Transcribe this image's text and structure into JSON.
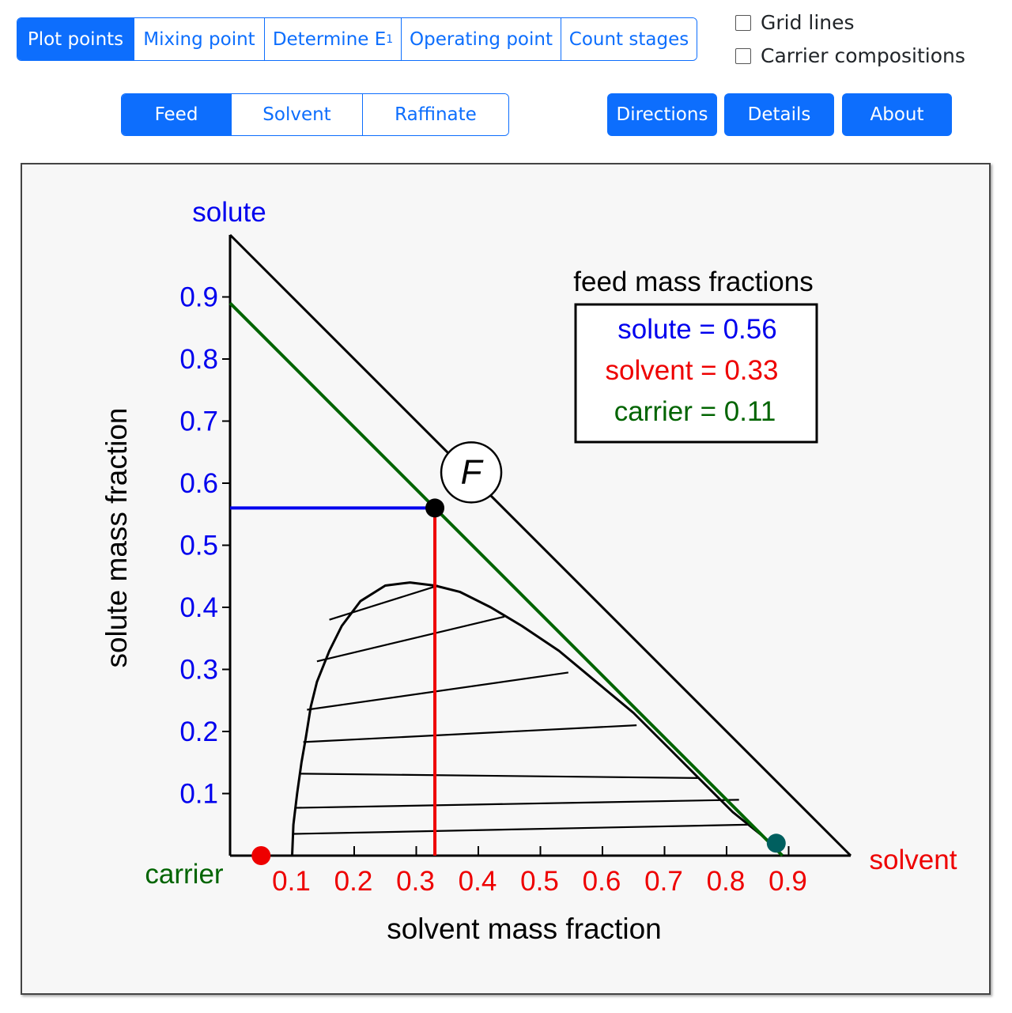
{
  "toolbar": {
    "modes": [
      "Plot points",
      "Mixing point",
      "Determine E",
      "Operating point",
      "Count stages"
    ],
    "mode_subscript": "1",
    "active_mode": 0
  },
  "checkboxes": {
    "grid_lines": "Grid lines",
    "carrier_compositions": "Carrier compositions"
  },
  "point_tabs": {
    "items": [
      "Feed",
      "Solvent",
      "Raffinate"
    ],
    "active": 0
  },
  "actions": {
    "directions": "Directions",
    "details": "Details",
    "about": "About"
  },
  "colors": {
    "accent": "#0d6efd",
    "solute": "#0000ee",
    "solvent": "#ee0000",
    "carrier": "#006400",
    "solvent_point": "#005f5f"
  },
  "chart_data": {
    "type": "ternary-right-triangle",
    "xlabel": "solvent mass fraction",
    "ylabel": "solute mass fraction",
    "vertex_labels": {
      "solute": "solute",
      "solvent": "solvent",
      "carrier": "carrier"
    },
    "x_ticks": [
      "0.1",
      "0.2",
      "0.3",
      "0.4",
      "0.5",
      "0.6",
      "0.7",
      "0.8",
      "0.9"
    ],
    "y_ticks": [
      "0.1",
      "0.2",
      "0.3",
      "0.4",
      "0.5",
      "0.6",
      "0.7",
      "0.8",
      "0.9"
    ],
    "xlim": [
      0,
      1
    ],
    "ylim": [
      0,
      1
    ],
    "feed": {
      "label": "F",
      "solvent": 0.33,
      "solute": 0.56,
      "carrier": 0.11,
      "box_title": "feed mass fractions",
      "box_lines": [
        "solute = 0.56",
        "solvent = 0.33",
        "carrier = 0.11"
      ]
    },
    "solvent_point": {
      "solvent": 0.88,
      "solute": 0.02
    },
    "raffinate_marker": {
      "solvent": 0.05,
      "solute": 0.0
    },
    "phase_envelope": [
      [
        0.1,
        0.0
      ],
      [
        0.102,
        0.05
      ],
      [
        0.108,
        0.1
      ],
      [
        0.115,
        0.15
      ],
      [
        0.122,
        0.19
      ],
      [
        0.13,
        0.24
      ],
      [
        0.14,
        0.28
      ],
      [
        0.16,
        0.33
      ],
      [
        0.18,
        0.37
      ],
      [
        0.21,
        0.41
      ],
      [
        0.25,
        0.435
      ],
      [
        0.29,
        0.44
      ],
      [
        0.33,
        0.435
      ],
      [
        0.37,
        0.425
      ],
      [
        0.42,
        0.4
      ],
      [
        0.47,
        0.37
      ],
      [
        0.53,
        0.33
      ],
      [
        0.59,
        0.28
      ],
      [
        0.65,
        0.23
      ],
      [
        0.71,
        0.17
      ],
      [
        0.76,
        0.12
      ],
      [
        0.81,
        0.07
      ],
      [
        0.86,
        0.03
      ],
      [
        0.885,
        0.01
      ]
    ],
    "tie_lines": [
      [
        [
          0.102,
          0.035
        ],
        [
          0.84,
          0.05
        ]
      ],
      [
        [
          0.105,
          0.077
        ],
        [
          0.82,
          0.09
        ]
      ],
      [
        [
          0.112,
          0.132
        ],
        [
          0.755,
          0.125
        ]
      ],
      [
        [
          0.118,
          0.183
        ],
        [
          0.655,
          0.21
        ]
      ],
      [
        [
          0.124,
          0.235
        ],
        [
          0.545,
          0.295
        ]
      ],
      [
        [
          0.14,
          0.313
        ],
        [
          0.442,
          0.385
        ]
      ],
      [
        [
          0.16,
          0.38
        ],
        [
          0.335,
          0.435
        ]
      ]
    ]
  }
}
